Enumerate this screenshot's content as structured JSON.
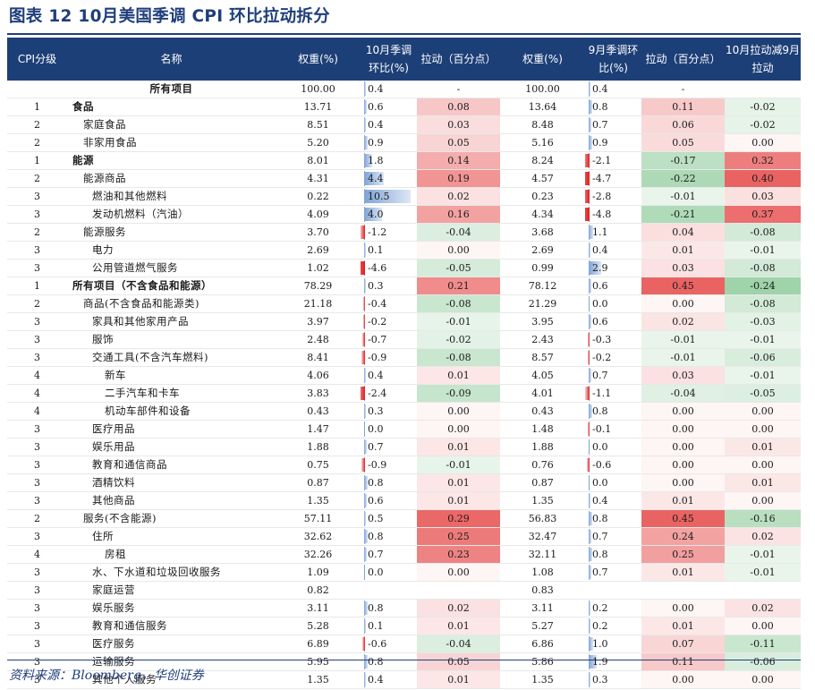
{
  "title": "图表 12    10月美国季调 CPI 环比拉动拆分",
  "source": "资料来源：Bloomberg，华创证券",
  "headers": {
    "level": "CPI分级",
    "name": "名称",
    "weight_oct": "权重(%)",
    "mom_oct": "10月季调环比(%)",
    "contrib_oct": "拉动（百分点）",
    "weight_sep": "权重(%)",
    "mom_sep": "9月季调环比(%)",
    "contrib_sep": "拉动（百分点）",
    "diff": "10月拉动减9月拉动"
  },
  "rows": [
    {
      "level": "",
      "name": "所有项目",
      "bold": true,
      "center": true,
      "w10": "100.00",
      "m10": "0.4",
      "c10": "-",
      "w9": "100.00",
      "m9": "0.4",
      "c9": "-",
      "d": ""
    },
    {
      "level": "1",
      "name": "食品",
      "bold": true,
      "indent": 0,
      "w10": "13.71",
      "m10": "0.6",
      "c10": "0.08",
      "w9": "13.64",
      "m9": "0.8",
      "c9": "0.11",
      "d": "-0.02"
    },
    {
      "level": "2",
      "name": "家庭食品",
      "indent": 1,
      "w10": "8.51",
      "m10": "0.4",
      "c10": "0.03",
      "w9": "8.48",
      "m9": "0.7",
      "c9": "0.06",
      "d": "-0.02"
    },
    {
      "level": "2",
      "name": "非家用食品",
      "indent": 1,
      "w10": "5.20",
      "m10": "0.9",
      "c10": "0.05",
      "w9": "5.16",
      "m9": "0.9",
      "c9": "0.05",
      "d": "0.00"
    },
    {
      "level": "1",
      "name": "能源",
      "bold": true,
      "indent": 0,
      "w10": "8.01",
      "m10": "1.8",
      "c10": "0.14",
      "w9": "8.24",
      "m9": "-2.1",
      "c9": "-0.17",
      "d": "0.32"
    },
    {
      "level": "2",
      "name": "能源商品",
      "indent": 1,
      "w10": "4.31",
      "m10": "4.4",
      "c10": "0.19",
      "w9": "4.57",
      "m9": "-4.7",
      "c9": "-0.22",
      "d": "0.40"
    },
    {
      "level": "3",
      "name": "燃油和其他燃料",
      "indent": 2,
      "w10": "0.22",
      "m10": "10.5",
      "c10": "0.02",
      "w9": "0.23",
      "m9": "-2.8",
      "c9": "-0.01",
      "d": "0.03"
    },
    {
      "level": "3",
      "name": "发动机燃料（汽油）",
      "indent": 2,
      "w10": "4.09",
      "m10": "4.0",
      "c10": "0.16",
      "w9": "4.34",
      "m9": "-4.8",
      "c9": "-0.21",
      "d": "0.37"
    },
    {
      "level": "2",
      "name": "能源服务",
      "indent": 1,
      "w10": "3.70",
      "m10": "-1.2",
      "c10": "-0.04",
      "w9": "3.68",
      "m9": "1.1",
      "c9": "0.04",
      "d": "-0.08"
    },
    {
      "level": "3",
      "name": "电力",
      "indent": 2,
      "w10": "2.69",
      "m10": "0.1",
      "c10": "0.00",
      "w9": "2.69",
      "m9": "0.4",
      "c9": "0.01",
      "d": "-0.01"
    },
    {
      "level": "3",
      "name": "公用管道燃气服务",
      "indent": 2,
      "w10": "1.02",
      "m10": "-4.6",
      "c10": "-0.05",
      "w9": "0.99",
      "m9": "2.9",
      "c9": "0.03",
      "d": "-0.08"
    },
    {
      "level": "1",
      "name": "所有项目（不含食品和能源）",
      "bold": true,
      "indent": 0,
      "w10": "78.29",
      "m10": "0.3",
      "c10": "0.21",
      "w9": "78.12",
      "m9": "0.6",
      "c9": "0.45",
      "d": "-0.24"
    },
    {
      "level": "2",
      "name": "商品(不含食品和能源类)",
      "indent": 1,
      "w10": "21.18",
      "m10": "-0.4",
      "c10": "-0.08",
      "w9": "21.29",
      "m9": "0.0",
      "c9": "0.00",
      "d": "-0.08"
    },
    {
      "level": "3",
      "name": "家具和其他家用产品",
      "indent": 2,
      "w10": "3.97",
      "m10": "-0.2",
      "c10": "-0.01",
      "w9": "3.95",
      "m9": "0.6",
      "c9": "0.02",
      "d": "-0.03"
    },
    {
      "level": "3",
      "name": "服饰",
      "indent": 2,
      "w10": "2.48",
      "m10": "-0.7",
      "c10": "-0.02",
      "w9": "2.43",
      "m9": "-0.3",
      "c9": "-0.01",
      "d": "-0.01"
    },
    {
      "level": "3",
      "name": "交通工具(不含汽车燃料)",
      "indent": 2,
      "w10": "8.41",
      "m10": "-0.9",
      "c10": "-0.08",
      "w9": "8.57",
      "m9": "-0.2",
      "c9": "-0.01",
      "d": "-0.06"
    },
    {
      "level": "4",
      "name": "新车",
      "indent": 3,
      "w10": "4.06",
      "m10": "0.4",
      "c10": "0.01",
      "w9": "4.05",
      "m9": "0.7",
      "c9": "0.03",
      "d": "-0.01"
    },
    {
      "level": "4",
      "name": "二手汽车和卡车",
      "indent": 3,
      "w10": "3.83",
      "m10": "-2.4",
      "c10": "-0.09",
      "w9": "4.01",
      "m9": "-1.1",
      "c9": "-0.04",
      "d": "-0.05"
    },
    {
      "level": "4",
      "name": "机动车部件和设备",
      "indent": 3,
      "w10": "0.43",
      "m10": "0.3",
      "c10": "0.00",
      "w9": "0.43",
      "m9": "0.8",
      "c9": "0.00",
      "d": "0.00"
    },
    {
      "level": "3",
      "name": "医疗用品",
      "indent": 2,
      "w10": "1.47",
      "m10": "0.0",
      "c10": "0.00",
      "w9": "1.48",
      "m9": "-0.1",
      "c9": "0.00",
      "d": "0.00"
    },
    {
      "level": "3",
      "name": "娱乐用品",
      "indent": 2,
      "w10": "1.88",
      "m10": "0.7",
      "c10": "0.01",
      "w9": "1.88",
      "m9": "0.0",
      "c9": "0.00",
      "d": "0.01"
    },
    {
      "level": "3",
      "name": "教育和通信商品",
      "indent": 2,
      "w10": "0.75",
      "m10": "-0.9",
      "c10": "-0.01",
      "w9": "0.76",
      "m9": "-0.6",
      "c9": "0.00",
      "d": "0.00"
    },
    {
      "level": "3",
      "name": "酒精饮料",
      "indent": 2,
      "w10": "0.87",
      "m10": "0.8",
      "c10": "0.01",
      "w9": "0.87",
      "m9": "0.0",
      "c9": "0.00",
      "d": "0.01"
    },
    {
      "level": "3",
      "name": "其他商品",
      "indent": 2,
      "w10": "1.35",
      "m10": "0.6",
      "c10": "0.01",
      "w9": "1.35",
      "m9": "0.4",
      "c9": "0.01",
      "d": "0.00"
    },
    {
      "level": "2",
      "name": "服务(不含能源)",
      "indent": 1,
      "w10": "57.11",
      "m10": "0.5",
      "c10": "0.29",
      "w9": "56.83",
      "m9": "0.8",
      "c9": "0.45",
      "d": "-0.16"
    },
    {
      "level": "3",
      "name": "住所",
      "indent": 2,
      "w10": "32.62",
      "m10": "0.8",
      "c10": "0.25",
      "w9": "32.47",
      "m9": "0.7",
      "c9": "0.24",
      "d": "0.02"
    },
    {
      "level": "4",
      "name": "房租",
      "indent": 3,
      "w10": "32.26",
      "m10": "0.7",
      "c10": "0.23",
      "w9": "32.11",
      "m9": "0.8",
      "c9": "0.25",
      "d": "-0.01"
    },
    {
      "level": "3",
      "name": "水、下水道和垃圾回收服务",
      "indent": 2,
      "w10": "1.09",
      "m10": "0.0",
      "c10": "0.00",
      "w9": "1.08",
      "m9": "0.7",
      "c9": "0.01",
      "d": "-0.01"
    },
    {
      "level": "3",
      "name": "家庭运营",
      "indent": 2,
      "w10": "0.82",
      "m10": "",
      "c10": "",
      "w9": "0.83",
      "m9": "",
      "c9": "",
      "d": ""
    },
    {
      "level": "3",
      "name": "娱乐服务",
      "indent": 2,
      "w10": "3.11",
      "m10": "0.8",
      "c10": "0.02",
      "w9": "3.11",
      "m9": "0.2",
      "c9": "0.00",
      "d": "0.02"
    },
    {
      "level": "3",
      "name": "教育和通信服务",
      "indent": 2,
      "w10": "5.28",
      "m10": "0.1",
      "c10": "0.01",
      "w9": "5.27",
      "m9": "0.2",
      "c9": "0.01",
      "d": "0.00"
    },
    {
      "level": "3",
      "name": "医疗服务",
      "indent": 2,
      "w10": "6.89",
      "m10": "-0.6",
      "c10": "-0.04",
      "w9": "6.86",
      "m9": "1.0",
      "c9": "0.07",
      "d": "-0.11"
    },
    {
      "level": "3",
      "name": "运输服务",
      "indent": 2,
      "w10": "5.95",
      "m10": "0.8",
      "c10": "0.05",
      "w9": "5.86",
      "m9": "1.9",
      "c9": "0.11",
      "d": "-0.06"
    },
    {
      "level": "3",
      "name": "其他个人服务",
      "indent": 2,
      "w10": "1.35",
      "m10": "0.4",
      "c10": "0.01",
      "w9": "1.35",
      "m9": "0.3",
      "c9": "0.00",
      "d": "0.00"
    }
  ]
}
